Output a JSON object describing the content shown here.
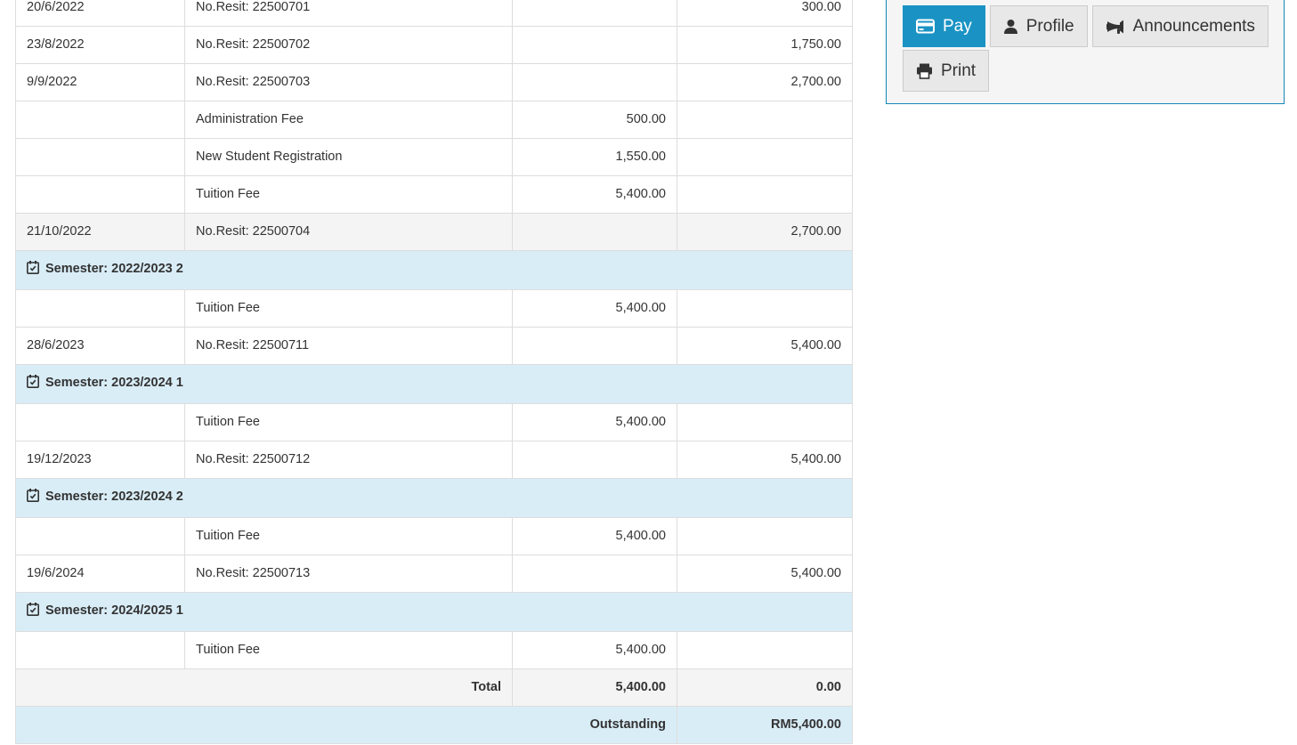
{
  "panel": {
    "buttons": {
      "pay": {
        "label": "Pay",
        "active": true
      },
      "profile": {
        "label": "Profile"
      },
      "announcements": {
        "label": "Announcements"
      },
      "print": {
        "label": "Print"
      }
    }
  },
  "table": {
    "columns": {
      "date": "",
      "description": "",
      "charge": "",
      "payment": ""
    },
    "rows": [
      {
        "type": "entry",
        "date": "20/6/2022",
        "desc": "No.Resit: 22500701",
        "debit": "",
        "credit": "300.00"
      },
      {
        "type": "entry",
        "date": "23/8/2022",
        "desc": "No.Resit: 22500702",
        "debit": "",
        "credit": "1,750.00"
      },
      {
        "type": "entry",
        "date": "9/9/2022",
        "desc": "No.Resit: 22500703",
        "debit": "",
        "credit": "2,700.00"
      },
      {
        "type": "entry",
        "date": "",
        "desc": "Administration Fee",
        "debit": "500.00",
        "credit": ""
      },
      {
        "type": "entry",
        "date": "",
        "desc": "New Student Registration",
        "debit": "1,550.00",
        "credit": ""
      },
      {
        "type": "entry",
        "date": "",
        "desc": "Tuition Fee",
        "debit": "5,400.00",
        "credit": ""
      },
      {
        "type": "entry",
        "date": "21/10/2022",
        "desc": "No.Resit: 22500704",
        "debit": "",
        "credit": "2,700.00",
        "shaded": true
      },
      {
        "type": "semester",
        "label": "Semester: 2022/2023 2"
      },
      {
        "type": "entry",
        "date": "",
        "desc": "Tuition Fee",
        "debit": "5,400.00",
        "credit": ""
      },
      {
        "type": "entry",
        "date": "28/6/2023",
        "desc": "No.Resit: 22500711",
        "debit": "",
        "credit": "5,400.00"
      },
      {
        "type": "semester",
        "label": "Semester: 2023/2024 1"
      },
      {
        "type": "entry",
        "date": "",
        "desc": "Tuition Fee",
        "debit": "5,400.00",
        "credit": ""
      },
      {
        "type": "entry",
        "date": "19/12/2023",
        "desc": "No.Resit: 22500712",
        "debit": "",
        "credit": "5,400.00"
      },
      {
        "type": "semester",
        "label": "Semester: 2023/2024 2"
      },
      {
        "type": "entry",
        "date": "",
        "desc": "Tuition Fee",
        "debit": "5,400.00",
        "credit": ""
      },
      {
        "type": "entry",
        "date": "19/6/2024",
        "desc": "No.Resit: 22500713",
        "debit": "",
        "credit": "5,400.00"
      },
      {
        "type": "semester",
        "label": "Semester: 2024/2025 1"
      },
      {
        "type": "entry",
        "date": "",
        "desc": "Tuition Fee",
        "debit": "5,400.00",
        "credit": ""
      },
      {
        "type": "total",
        "label": "Total",
        "debit": "5,400.00",
        "credit": "0.00"
      },
      {
        "type": "outstanding",
        "label": "Outstanding",
        "value": "RM5,400.00"
      }
    ]
  },
  "colors": {
    "accent_blue": "#1a93c4",
    "panel_border": "#1586b8",
    "semester_row_bg": "#d9edf7",
    "outstanding_row_bg": "#d9edf7",
    "shaded_row_bg": "#f4f4f4",
    "table_border": "#dddddd",
    "text": "#333333"
  },
  "icons": {
    "pay": "credit-card-icon",
    "profile": "user-icon",
    "announcements": "bullhorn-icon",
    "print": "printer-icon",
    "semester": "calendar-check-icon"
  }
}
